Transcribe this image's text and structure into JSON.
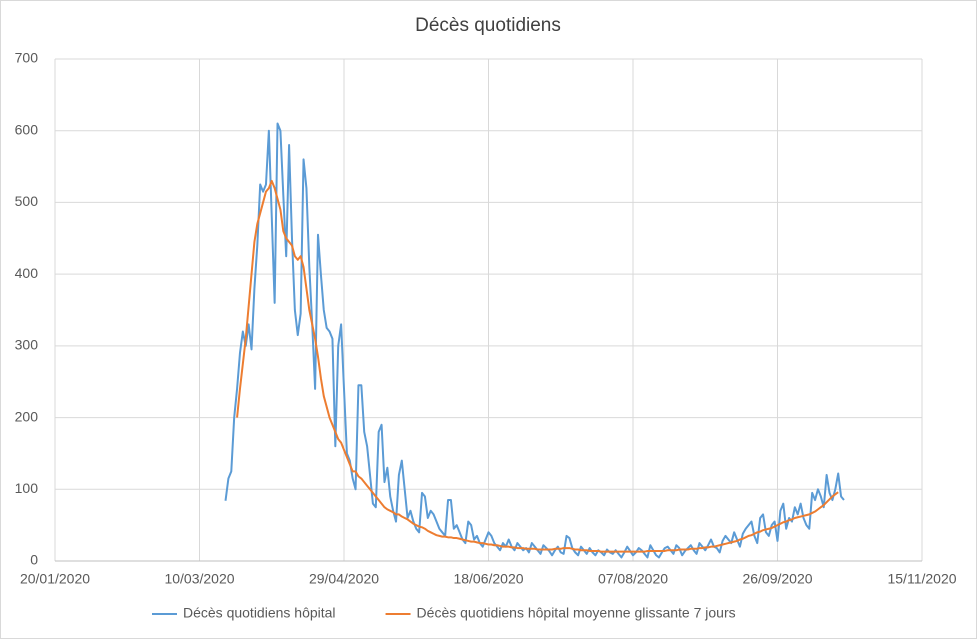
{
  "chart_data": {
    "type": "line",
    "title": "Décès quotidiens",
    "xlim": [
      "20/01/2020",
      "15/11/2020"
    ],
    "xticks": [
      "20/01/2020",
      "10/03/2020",
      "29/04/2020",
      "18/06/2020",
      "07/08/2020",
      "26/09/2020",
      "15/11/2020"
    ],
    "ylim": [
      0,
      700
    ],
    "yticks": [
      0,
      100,
      200,
      300,
      400,
      500,
      600,
      700
    ],
    "grid": true,
    "legend": "bottom",
    "x": [
      "19/03/2020",
      "20/03/2020",
      "21/03/2020",
      "22/03/2020",
      "23/03/2020",
      "24/03/2020",
      "25/03/2020",
      "26/03/2020",
      "27/03/2020",
      "28/03/2020",
      "29/03/2020",
      "30/03/2020",
      "31/03/2020",
      "01/04/2020",
      "02/04/2020",
      "03/04/2020",
      "04/04/2020",
      "05/04/2020",
      "06/04/2020",
      "07/04/2020",
      "08/04/2020",
      "09/04/2020",
      "10/04/2020",
      "11/04/2020",
      "12/04/2020",
      "13/04/2020",
      "14/04/2020",
      "15/04/2020",
      "16/04/2020",
      "17/04/2020",
      "18/04/2020",
      "19/04/2020",
      "20/04/2020",
      "21/04/2020",
      "22/04/2020",
      "23/04/2020",
      "24/04/2020",
      "25/04/2020",
      "26/04/2020",
      "27/04/2020",
      "28/04/2020",
      "29/04/2020",
      "30/04/2020",
      "01/05/2020",
      "02/05/2020",
      "03/05/2020",
      "04/05/2020",
      "05/05/2020",
      "06/05/2020",
      "07/05/2020",
      "08/05/2020",
      "09/05/2020",
      "10/05/2020",
      "11/05/2020",
      "12/05/2020",
      "13/05/2020",
      "14/05/2020",
      "15/05/2020",
      "16/05/2020",
      "17/05/2020",
      "18/05/2020",
      "19/05/2020",
      "20/05/2020",
      "21/05/2020",
      "22/05/2020",
      "23/05/2020",
      "24/05/2020",
      "25/05/2020",
      "26/05/2020",
      "27/05/2020",
      "28/05/2020",
      "29/05/2020",
      "30/05/2020",
      "31/05/2020",
      "01/06/2020",
      "02/06/2020",
      "03/06/2020",
      "04/06/2020",
      "05/06/2020",
      "06/06/2020",
      "07/06/2020",
      "08/06/2020",
      "09/06/2020",
      "10/06/2020",
      "11/06/2020",
      "12/06/2020",
      "13/06/2020",
      "14/06/2020",
      "15/06/2020",
      "16/06/2020",
      "17/06/2020",
      "18/06/2020",
      "19/06/2020",
      "20/06/2020",
      "21/06/2020",
      "22/06/2020",
      "23/06/2020",
      "24/06/2020",
      "25/06/2020",
      "26/06/2020",
      "27/06/2020",
      "28/06/2020",
      "29/06/2020",
      "30/06/2020",
      "01/07/2020",
      "02/07/2020",
      "03/07/2020",
      "04/07/2020",
      "05/07/2020",
      "06/07/2020",
      "07/07/2020",
      "08/07/2020",
      "09/07/2020",
      "10/07/2020",
      "11/07/2020",
      "12/07/2020",
      "13/07/2020",
      "14/07/2020",
      "15/07/2020",
      "16/07/2020",
      "17/07/2020",
      "18/07/2020",
      "19/07/2020",
      "20/07/2020",
      "21/07/2020",
      "22/07/2020",
      "23/07/2020",
      "24/07/2020",
      "25/07/2020",
      "26/07/2020",
      "27/07/2020",
      "28/07/2020",
      "29/07/2020",
      "30/07/2020",
      "31/07/2020",
      "01/08/2020",
      "02/08/2020",
      "03/08/2020",
      "04/08/2020",
      "05/08/2020",
      "06/08/2020",
      "07/08/2020",
      "08/08/2020",
      "09/08/2020",
      "10/08/2020",
      "11/08/2020",
      "12/08/2020",
      "13/08/2020",
      "14/08/2020",
      "15/08/2020",
      "16/08/2020",
      "17/08/2020",
      "18/08/2020",
      "19/08/2020",
      "20/08/2020",
      "21/08/2020",
      "22/08/2020",
      "23/08/2020",
      "24/08/2020",
      "25/08/2020",
      "26/08/2020",
      "27/08/2020",
      "28/08/2020",
      "29/08/2020",
      "30/08/2020",
      "31/08/2020",
      "01/09/2020",
      "02/09/2020",
      "03/09/2020",
      "04/09/2020",
      "05/09/2020",
      "06/09/2020",
      "07/09/2020",
      "08/09/2020",
      "09/09/2020",
      "10/09/2020",
      "11/09/2020",
      "12/09/2020",
      "13/09/2020",
      "14/09/2020",
      "15/09/2020",
      "16/09/2020",
      "17/09/2020",
      "18/09/2020",
      "19/09/2020",
      "20/09/2020",
      "21/09/2020",
      "22/09/2020",
      "23/09/2020",
      "24/09/2020",
      "25/09/2020",
      "26/09/2020",
      "27/09/2020",
      "28/09/2020",
      "29/09/2020",
      "30/09/2020",
      "01/10/2020",
      "02/10/2020",
      "03/10/2020",
      "04/10/2020",
      "05/10/2020",
      "06/10/2020",
      "07/10/2020",
      "08/10/2020",
      "09/10/2020",
      "10/10/2020",
      "11/10/2020",
      "12/10/2020",
      "13/10/2020",
      "14/10/2020",
      "15/10/2020",
      "16/10/2020",
      "17/10/2020",
      "18/10/2020",
      "19/10/2020"
    ],
    "series": [
      {
        "name": "Décès quotidiens hôpital",
        "color": "#5b9bd5",
        "values": [
          84,
          115,
          125,
          200,
          240,
          290,
          320,
          300,
          330,
          295,
          380,
          440,
          525,
          515,
          525,
          600,
          480,
          360,
          610,
          600,
          510,
          425,
          580,
          450,
          350,
          315,
          345,
          560,
          520,
          410,
          330,
          240,
          455,
          400,
          350,
          325,
          320,
          310,
          160,
          300,
          330,
          240,
          150,
          140,
          115,
          100,
          245,
          245,
          180,
          160,
          120,
          80,
          75,
          180,
          190,
          110,
          130,
          90,
          70,
          55,
          120,
          140,
          100,
          60,
          70,
          55,
          45,
          40,
          95,
          90,
          60,
          70,
          65,
          55,
          45,
          40,
          35,
          85,
          85,
          45,
          50,
          40,
          30,
          25,
          55,
          50,
          30,
          35,
          25,
          20,
          30,
          40,
          35,
          25,
          20,
          15,
          25,
          20,
          30,
          20,
          15,
          25,
          20,
          15,
          18,
          12,
          25,
          20,
          15,
          10,
          22,
          18,
          14,
          8,
          15,
          20,
          12,
          10,
          35,
          32,
          18,
          12,
          8,
          20,
          15,
          10,
          18,
          12,
          8,
          15,
          12,
          8,
          16,
          12,
          10,
          15,
          10,
          5,
          12,
          20,
          14,
          8,
          12,
          18,
          15,
          10,
          5,
          22,
          15,
          8,
          5,
          12,
          18,
          20,
          15,
          10,
          22,
          18,
          8,
          14,
          18,
          22,
          15,
          10,
          25,
          20,
          15,
          22,
          30,
          20,
          18,
          12,
          28,
          35,
          30,
          25,
          40,
          30,
          20,
          38,
          45,
          50,
          55,
          35,
          25,
          60,
          65,
          40,
          35,
          50,
          55,
          28,
          70,
          80,
          45,
          60,
          55,
          75,
          65,
          80,
          60,
          50,
          45,
          95,
          85,
          100,
          90,
          75,
          120,
          95,
          85,
          100,
          122,
          90,
          85
        ]
      },
      {
        "name": "Décès quotidiens hôpital moyenne glissante 7 jours",
        "color": "#ed7d31",
        "values": [
          null,
          null,
          null,
          null,
          200,
          240,
          275,
          310,
          355,
          400,
          445,
          470,
          485,
          500,
          515,
          520,
          530,
          520,
          505,
          490,
          460,
          450,
          445,
          440,
          425,
          420,
          425,
          410,
          380,
          350,
          330,
          310,
          285,
          255,
          230,
          215,
          200,
          190,
          180,
          170,
          165,
          155,
          145,
          135,
          125,
          125,
          118,
          115,
          110,
          105,
          100,
          95,
          90,
          85,
          80,
          75,
          72,
          70,
          68,
          65,
          65,
          62,
          60,
          58,
          55,
          52,
          50,
          48,
          47,
          45,
          42,
          40,
          38,
          36,
          35,
          34,
          34,
          33,
          33,
          32,
          32,
          31,
          30,
          29,
          28,
          27,
          27,
          26,
          25,
          25,
          24,
          23,
          23,
          22,
          22,
          21,
          20,
          20,
          20,
          19,
          19,
          18,
          18,
          18,
          17,
          17,
          17,
          17,
          16,
          16,
          16,
          16,
          16,
          16,
          17,
          17,
          17,
          18,
          18,
          18,
          17,
          16,
          16,
          15,
          15,
          15,
          14,
          14,
          14,
          14,
          13,
          13,
          13,
          13,
          13,
          13,
          13,
          13,
          13,
          13,
          13,
          13,
          13,
          13,
          13,
          13,
          14,
          14,
          14,
          14,
          14,
          14,
          14,
          15,
          15,
          15,
          15,
          16,
          16,
          16,
          16,
          17,
          17,
          17,
          18,
          18,
          19,
          19,
          20,
          20,
          21,
          22,
          23,
          24,
          25,
          26,
          27,
          28,
          30,
          31,
          33,
          35,
          36,
          38,
          40,
          41,
          43,
          44,
          45,
          46,
          48,
          50,
          52,
          54,
          55,
          57,
          58,
          60,
          61,
          62,
          63,
          64,
          65,
          67,
          69,
          72,
          75,
          78,
          82,
          86,
          90,
          93,
          96,
          null,
          null
        ]
      }
    ]
  }
}
